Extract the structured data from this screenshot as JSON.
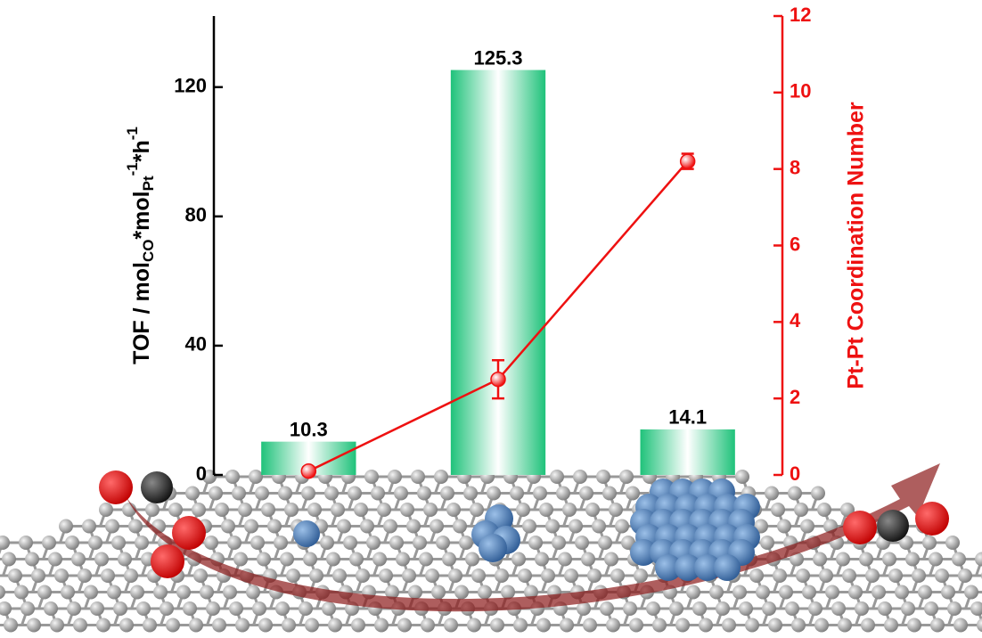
{
  "chart_data": {
    "type": "bar_line",
    "categories": [
      null,
      null,
      null
    ],
    "series": [
      {
        "type": "bar",
        "values": [
          10.3,
          125.3,
          14.1
        ]
      },
      {
        "type": "line",
        "axis": "y2",
        "color": "#ee1111",
        "values": [
          0.1,
          2.5,
          8.2
        ],
        "errors": [
          0.1,
          0.5,
          0.2
        ]
      }
    ],
    "ylabel": [
      "TOF / mol",
      "CO",
      "*mol",
      "Pt",
      "-1",
      "*h",
      "-1"
    ],
    "y2label": "Pt-Pt Coordination Number",
    "ylim": [
      0,
      142
    ],
    "yticks": [
      0,
      40,
      80,
      120
    ],
    "y2lim": [
      0,
      12
    ],
    "y2ticks": [
      0,
      2,
      4,
      6,
      8,
      10,
      12
    ]
  }
}
